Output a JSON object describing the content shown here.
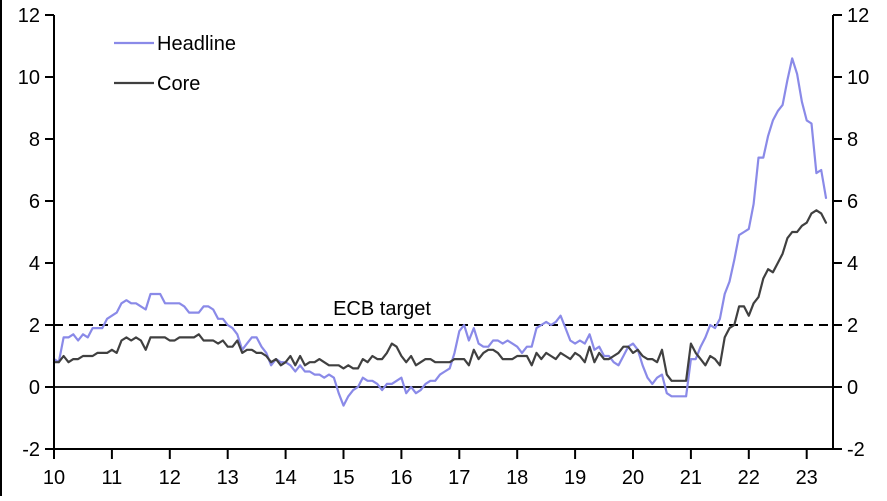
{
  "page": {
    "background": "#ffffff"
  },
  "chart_data": {
    "type": "line",
    "title": "",
    "xlabel": "",
    "ylabel": "",
    "ylim": [
      -2,
      12
    ],
    "grid": false,
    "axis_color": "#000000",
    "legend_position": "top-left-inside",
    "x_tick_labels": [
      "10",
      "11",
      "12",
      "13",
      "14",
      "15",
      "16",
      "17",
      "18",
      "19",
      "20",
      "21",
      "22",
      "23"
    ],
    "y_tick_labels": [
      "-2",
      "0",
      "2",
      "4",
      "6",
      "8",
      "10",
      "12"
    ],
    "zero_line": {
      "y": 0,
      "style": "solid"
    },
    "annotations": [
      {
        "label": "ECB target",
        "y": 2,
        "style": "dashed"
      }
    ],
    "series": [
      {
        "name": "Headline",
        "color": "#8a8ae8",
        "start": "2010-01",
        "frequency": "monthly",
        "values": [
          0.9,
          0.8,
          1.6,
          1.6,
          1.7,
          1.5,
          1.7,
          1.6,
          1.9,
          1.9,
          1.9,
          2.2,
          2.3,
          2.4,
          2.7,
          2.8,
          2.7,
          2.7,
          2.6,
          2.5,
          3.0,
          3.0,
          3.0,
          2.7,
          2.7,
          2.7,
          2.7,
          2.6,
          2.4,
          2.4,
          2.4,
          2.6,
          2.6,
          2.5,
          2.2,
          2.2,
          2.0,
          1.9,
          1.7,
          1.2,
          1.4,
          1.6,
          1.6,
          1.3,
          1.1,
          0.7,
          0.9,
          0.8,
          0.8,
          0.7,
          0.5,
          0.7,
          0.5,
          0.5,
          0.4,
          0.4,
          0.3,
          0.4,
          0.3,
          -0.2,
          -0.6,
          -0.3,
          -0.1,
          0.0,
          0.3,
          0.2,
          0.2,
          0.1,
          -0.1,
          0.1,
          0.1,
          0.2,
          0.3,
          -0.2,
          0.0,
          -0.2,
          -0.1,
          0.1,
          0.2,
          0.2,
          0.4,
          0.5,
          0.6,
          1.1,
          1.8,
          2.0,
          1.5,
          1.9,
          1.4,
          1.3,
          1.3,
          1.5,
          1.5,
          1.4,
          1.5,
          1.4,
          1.3,
          1.1,
          1.3,
          1.3,
          1.9,
          2.0,
          2.1,
          2.0,
          2.1,
          2.3,
          1.9,
          1.5,
          1.4,
          1.5,
          1.4,
          1.7,
          1.2,
          1.3,
          1.0,
          1.0,
          0.8,
          0.7,
          1.0,
          1.3,
          1.4,
          1.2,
          0.7,
          0.3,
          0.1,
          0.3,
          0.4,
          -0.2,
          -0.3,
          -0.3,
          -0.3,
          -0.3,
          0.9,
          0.9,
          1.3,
          1.6,
          2.0,
          1.9,
          2.2,
          3.0,
          3.4,
          4.1,
          4.9,
          5.0,
          5.1,
          5.9,
          7.4,
          7.4,
          8.1,
          8.6,
          8.9,
          9.1,
          9.9,
          10.6,
          10.1,
          9.2,
          8.6,
          8.5,
          6.9,
          7.0,
          6.1
        ]
      },
      {
        "name": "Core",
        "color": "#404040",
        "start": "2010-01",
        "frequency": "monthly",
        "values": [
          0.8,
          0.8,
          1.0,
          0.8,
          0.9,
          0.9,
          1.0,
          1.0,
          1.0,
          1.1,
          1.1,
          1.1,
          1.2,
          1.1,
          1.5,
          1.6,
          1.5,
          1.6,
          1.5,
          1.2,
          1.6,
          1.6,
          1.6,
          1.6,
          1.5,
          1.5,
          1.6,
          1.6,
          1.6,
          1.6,
          1.7,
          1.5,
          1.5,
          1.5,
          1.4,
          1.5,
          1.3,
          1.3,
          1.5,
          1.1,
          1.2,
          1.2,
          1.1,
          1.1,
          1.0,
          0.8,
          0.9,
          0.7,
          0.8,
          1.0,
          0.7,
          1.0,
          0.7,
          0.8,
          0.8,
          0.9,
          0.8,
          0.7,
          0.7,
          0.7,
          0.6,
          0.7,
          0.6,
          0.6,
          0.9,
          0.8,
          1.0,
          0.9,
          0.9,
          1.1,
          1.4,
          1.3,
          1.0,
          0.8,
          1.0,
          0.7,
          0.8,
          0.9,
          0.9,
          0.8,
          0.8,
          0.8,
          0.8,
          0.9,
          0.9,
          0.9,
          0.7,
          1.2,
          0.9,
          1.1,
          1.2,
          1.2,
          1.1,
          0.9,
          0.9,
          0.9,
          1.0,
          1.0,
          1.0,
          0.7,
          1.1,
          0.9,
          1.1,
          1.0,
          0.9,
          1.1,
          1.0,
          0.9,
          1.1,
          1.0,
          0.8,
          1.3,
          0.8,
          1.1,
          0.9,
          0.9,
          1.0,
          1.1,
          1.3,
          1.3,
          1.1,
          1.2,
          1.0,
          0.9,
          0.9,
          0.8,
          1.2,
          0.4,
          0.2,
          0.2,
          0.2,
          0.2,
          1.4,
          1.1,
          0.9,
          0.7,
          1.0,
          0.9,
          0.7,
          1.6,
          1.9,
          2.0,
          2.6,
          2.6,
          2.3,
          2.7,
          2.9,
          3.5,
          3.8,
          3.7,
          4.0,
          4.3,
          4.8,
          5.0,
          5.0,
          5.2,
          5.3,
          5.6,
          5.7,
          5.6,
          5.3
        ]
      }
    ]
  }
}
